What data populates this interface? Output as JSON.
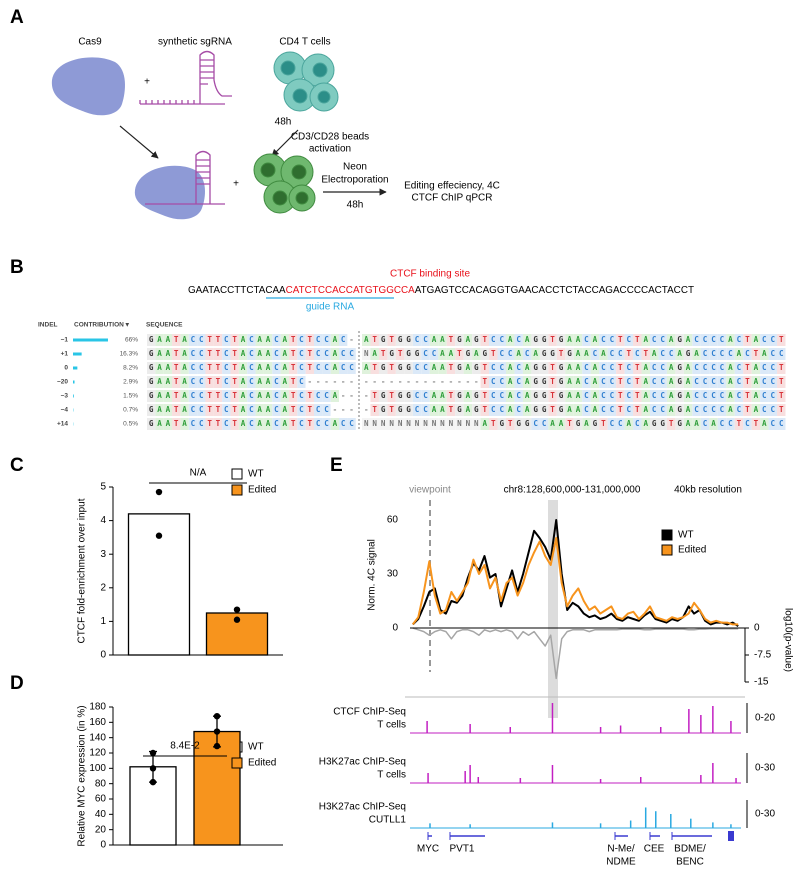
{
  "panel_letters": [
    "A",
    "B",
    "C",
    "D",
    "E"
  ],
  "panel_a": {
    "cas9_label": "Cas9",
    "sgrna_label": "synthetic sgRNA",
    "cells_label": "CD4 T cells",
    "plus_top": "+",
    "time_activation": "48h",
    "activation_label": [
      "CD3/CD28 beads",
      "activation"
    ],
    "plus_bottom": "+",
    "electroporation_label": [
      "Neon",
      "Electroporation"
    ],
    "time_electroporation": "48h",
    "readout_label": [
      "Editing effeciency, 4C",
      "CTCF ChIP qPCR"
    ]
  },
  "panel_b": {
    "sequence": [
      "GAATACCTTCTACAA",
      "CATCTCCACCATGTGGCCA",
      "ATGAGTCCACAGGTGAACACCTCTACCAGACCCCACTACCT"
    ],
    "binding_site_label": "CTCF binding site",
    "guide_label": "guide RNA",
    "table": {
      "headers": [
        "INDEL",
        "CONTRIBUTION ▾",
        "SEQUENCE"
      ],
      "indels": [
        "−1",
        "+1",
        "0",
        "−20",
        "−3",
        "−4",
        "+14"
      ],
      "contribution": [
        66,
        16.3,
        8.2,
        2.9,
        1.5,
        0.7,
        0.5
      ],
      "contribution_labels": [
        "66%",
        "16.3%",
        "8.2%",
        "2.9%",
        "1.5%",
        "0.7%",
        "0.5%"
      ],
      "left": [
        "GAATACCTTCTACAACATCTCCAC-",
        "GAATACCTTCTACAACATCTCCACC",
        "GAATACCTTCTACAACATCTCCACC",
        "GAATACCTTCTACAACATC------",
        "GAATACCTTCTACAACATCTCCA--",
        "GAATACCTTCTACAACATCTCC---",
        "GAATACCTTCTACAACATCTCCACC"
      ],
      "right": [
        "ATGTGGCCAATGAGTCCACAGGTGAACACCTCTACCAGACCCCACTACCT",
        "NATGTGGCCAATGAGTCCACAGGTGAACACCTCTACCAGACCCCACTACC",
        "ATGTGGCCAATGAGTCCACAGGTGAACACCTCTACCAGACCCCACTACCT",
        "--------------TCCACAGGTGAACACCTCTACCAGACCCCACTACCT",
        "-TGTGGCCAATGAGTCCACAGGTGAACACCTCTACCAGACCCCACTACCT",
        "-TGTGGCCAATGAGTCCACAGGTGAACACCTCTACCAGACCCCACTACCT",
        "NNNNNNNNNNNNNNATGTGGCCAATGAGTCCACAGGTGAACACCTCTACC"
      ]
    }
  },
  "chart_data": [
    {
      "type": "bar",
      "ylabel": "CTCF fold-enrichment over input",
      "categories": [
        "WT",
        "Edited"
      ],
      "colors": [
        "#ffffff",
        "#f7941d"
      ],
      "values": [
        4.2,
        1.25
      ],
      "points": [
        [
          4.85,
          3.55
        ],
        [
          1.35,
          1.05
        ]
      ],
      "ylim": [
        0,
        5
      ],
      "yticks": [
        0,
        1,
        2,
        3,
        4,
        5
      ],
      "annotation": "N/A"
    },
    {
      "type": "bar",
      "ylabel": "Relative MYC expression (in %)",
      "categories": [
        "WT",
        "Edited"
      ],
      "colors": [
        "#ffffff",
        "#f7941d"
      ],
      "values": [
        102,
        148
      ],
      "errors": [
        20,
        20
      ],
      "points": [
        [
          120,
          100,
          82
        ],
        [
          168,
          148,
          129
        ]
      ],
      "ylim": [
        0,
        180
      ],
      "yticks": [
        0,
        20,
        40,
        60,
        80,
        100,
        120,
        140,
        160,
        180
      ],
      "annotation": "8.4E-2"
    },
    {
      "type": "line",
      "title": "chr8:128,600,000-131,000,000",
      "viewpoint_label": "viewpoint",
      "resolution_label": "40kb resolution",
      "ylabel": "Norm. 4C signal",
      "y2label": "log10(p-value)",
      "xlim": [
        128600000,
        131000000
      ],
      "ylim": [
        0,
        60
      ],
      "yticks": [
        0,
        30,
        60
      ],
      "y2lim": [
        -15,
        0
      ],
      "y2ticks": [
        0,
        -7.5,
        -15
      ],
      "x": [
        128620000,
        128660000,
        128700000,
        128740000,
        128780000,
        128820000,
        128860000,
        128900000,
        128940000,
        128980000,
        129020000,
        129060000,
        129100000,
        129140000,
        129180000,
        129220000,
        129260000,
        129300000,
        129340000,
        129380000,
        129420000,
        129460000,
        129500000,
        129540000,
        129580000,
        129620000,
        129660000,
        129700000,
        129740000,
        129780000,
        129820000,
        129860000,
        129900000,
        129940000,
        129980000,
        130020000,
        130060000,
        130100000,
        130140000,
        130180000,
        130220000,
        130260000,
        130300000,
        130340000,
        130380000,
        130420000,
        130460000,
        130500000,
        130540000,
        130580000,
        130620000,
        130660000,
        130700000,
        130740000,
        130780000,
        130820000,
        130860000,
        130900000,
        130940000,
        130980000
      ],
      "series": [
        {
          "name": "WT",
          "color": "#000000",
          "values": [
            2,
            5,
            12,
            20,
            22,
            10,
            8,
            15,
            14,
            18,
            28,
            36,
            32,
            40,
            28,
            30,
            12,
            22,
            32,
            20,
            30,
            42,
            54,
            50,
            45,
            38,
            60,
            30,
            10,
            14,
            12,
            8,
            6,
            7,
            5,
            6,
            8,
            5,
            4,
            6,
            5,
            4,
            7,
            9,
            5,
            4,
            3,
            5,
            4,
            6,
            12,
            8,
            10,
            4,
            2,
            3,
            3,
            2,
            3,
            1
          ]
        },
        {
          "name": "Edited",
          "color": "#f7941d",
          "values": [
            2,
            6,
            20,
            37,
            18,
            8,
            10,
            20,
            15,
            20,
            25,
            38,
            30,
            35,
            22,
            28,
            15,
            25,
            28,
            18,
            25,
            35,
            42,
            48,
            40,
            35,
            50,
            25,
            12,
            18,
            22,
            15,
            10,
            12,
            8,
            10,
            12,
            6,
            5,
            8,
            9,
            5,
            8,
            12,
            6,
            5,
            4,
            6,
            5,
            6,
            8,
            14,
            10,
            5,
            3,
            4,
            3,
            3,
            2,
            2
          ]
        }
      ],
      "y2_values": [
        0,
        -0.5,
        -1,
        -2,
        -1,
        -0.5,
        -1,
        -3,
        -1,
        -0.5,
        -0.5,
        -1,
        -2,
        -0.5,
        -1,
        -0.5,
        -1,
        -0.5,
        -1,
        -3,
        -1,
        -2,
        -1,
        -3,
        -5,
        -2,
        -14,
        -3,
        -1,
        -0.5,
        -0.5,
        -0.5,
        -1,
        -0.5,
        -0.5,
        -0.5,
        -0.5,
        -0.5,
        -0.3,
        -0.3,
        -0.3,
        -0.3,
        -0.5,
        -0.5,
        -0.3,
        -0.3,
        -0.3,
        -0.3,
        -0.3,
        -0.3,
        -0.5,
        -0.5,
        -0.3,
        -0.3,
        -0.2,
        -0.2,
        -0.2,
        -0.2,
        -0.2,
        -0.2
      ],
      "y2_color": "#a6a6a6",
      "tracks": [
        {
          "label": [
            "CTCF ChIP-Seq",
            "T cells"
          ],
          "range_label": "0-20",
          "ylim": [
            0,
            20
          ],
          "color": "#c21fc2",
          "x": [
            128724000,
            129036000,
            129327000,
            129633000,
            129982000,
            130127000,
            130418000,
            130622000,
            130709000,
            130796000,
            130927000
          ],
          "values": [
            8,
            6,
            4,
            20,
            4,
            5,
            4,
            16,
            12,
            18,
            8
          ]
        },
        {
          "label": [
            "H3K27ac ChIP-Seq",
            "T cells"
          ],
          "range_label": "0-30",
          "ylim": [
            0,
            30
          ],
          "color": "#c21fc2",
          "x": [
            128731000,
            129000000,
            129036000,
            129095000,
            129400000,
            129633000,
            129982000,
            130273000,
            130709000,
            130796000,
            130964000
          ],
          "values": [
            10,
            12,
            18,
            6,
            5,
            18,
            4,
            6,
            8,
            20,
            5
          ]
        },
        {
          "label": [
            "H3K27ac ChIP-Seq",
            "CUTLL1"
          ],
          "range_label": "0-30",
          "ylim": [
            0,
            30
          ],
          "color": "#29a9e1",
          "x": [
            128745000,
            129036000,
            129633000,
            129982000,
            130200000,
            130309000,
            130382000,
            130491000,
            130636000,
            130796000,
            130927000
          ],
          "values": [
            5,
            4,
            6,
            5,
            8,
            22,
            18,
            15,
            10,
            6,
            4
          ]
        }
      ],
      "genes": [
        [
          "MYC"
        ],
        [
          "PVT1"
        ],
        [
          "N-Me/",
          "NDME"
        ],
        [
          "CEE"
        ],
        [
          "BDME/",
          "BENC"
        ]
      ]
    }
  ]
}
